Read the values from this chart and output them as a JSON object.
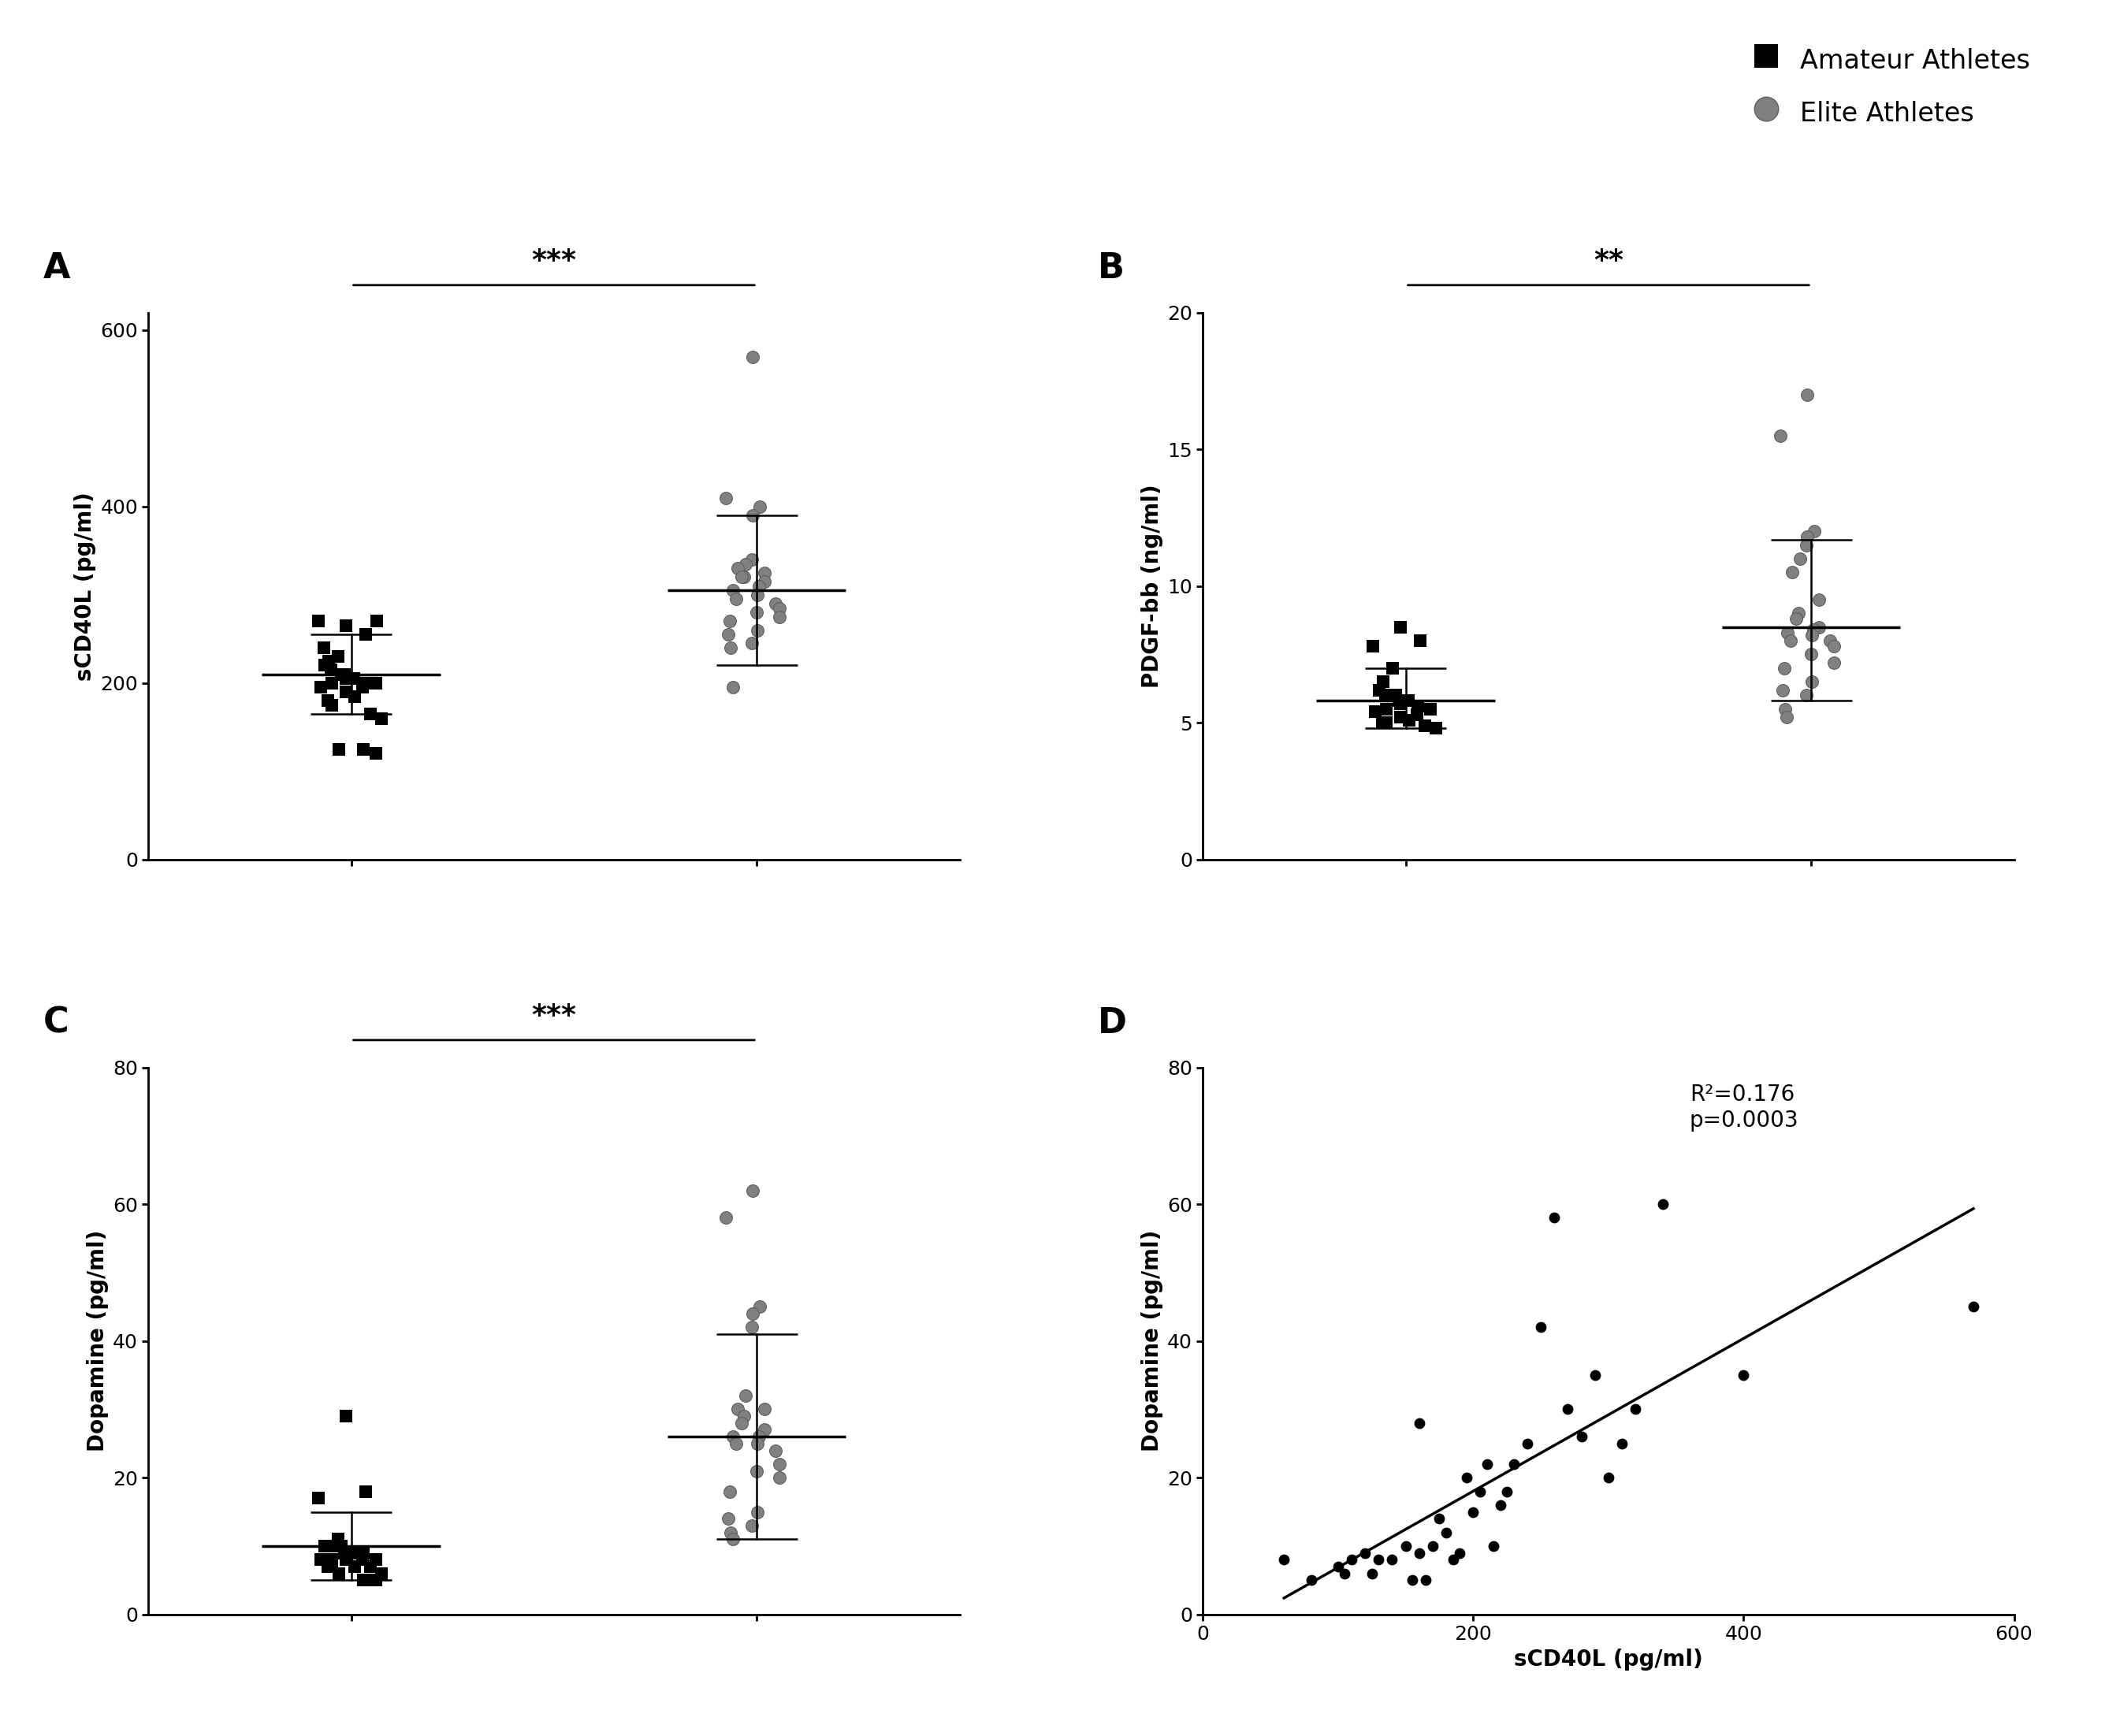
{
  "panel_A": {
    "amateur_x": 1,
    "elite_x": 2,
    "amateur_y": [
      265,
      255,
      270,
      230,
      225,
      220,
      215,
      210,
      210,
      205,
      205,
      200,
      200,
      200,
      195,
      195,
      190,
      185,
      180,
      175,
      165,
      160,
      125,
      125,
      120,
      270,
      240
    ],
    "elite_y": [
      570,
      410,
      400,
      390,
      340,
      335,
      330,
      325,
      320,
      320,
      315,
      310,
      305,
      300,
      295,
      290,
      285,
      280,
      275,
      270,
      260,
      255,
      245,
      240,
      195
    ],
    "amateur_mean": 210,
    "amateur_sd_upper": 255,
    "amateur_sd_lower": 165,
    "elite_mean": 305,
    "elite_sd_upper": 390,
    "elite_sd_lower": 220,
    "ylabel": "sCD40L (pg/ml)",
    "ylim": [
      0,
      620
    ],
    "yticks": [
      0,
      200,
      400,
      600
    ],
    "sig": "***",
    "panel_label": "A"
  },
  "panel_B": {
    "amateur_x": 1,
    "elite_x": 2,
    "amateur_y": [
      8.5,
      8.0,
      7.8,
      7.0,
      6.5,
      6.2,
      6.0,
      6.0,
      5.8,
      5.8,
      5.7,
      5.6,
      5.5,
      5.5,
      5.4,
      5.3,
      5.2,
      5.1,
      5.0,
      5.0,
      4.9,
      4.8
    ],
    "elite_y": [
      17.0,
      15.5,
      12.0,
      11.8,
      11.5,
      11.0,
      10.5,
      9.5,
      9.0,
      8.8,
      8.5,
      8.4,
      8.3,
      8.2,
      8.0,
      8.0,
      7.8,
      7.5,
      7.2,
      7.0,
      6.5,
      6.2,
      6.0,
      5.5,
      5.2
    ],
    "amateur_mean": 5.8,
    "amateur_sd_upper": 7.0,
    "amateur_sd_lower": 4.8,
    "elite_mean": 8.5,
    "elite_sd_upper": 11.7,
    "elite_sd_lower": 5.8,
    "ylabel": "PDGF-bb (ng/ml)",
    "ylim": [
      0,
      20
    ],
    "yticks": [
      0,
      5,
      10,
      15,
      20
    ],
    "sig": "**",
    "panel_label": "B"
  },
  "panel_C": {
    "amateur_x": 1,
    "elite_x": 2,
    "amateur_y": [
      29,
      18,
      17,
      11,
      10,
      10,
      10,
      10,
      9,
      9,
      9,
      9,
      8,
      8,
      8,
      8,
      8,
      7,
      7,
      7,
      7,
      6,
      6,
      5,
      5
    ],
    "elite_y": [
      62,
      58,
      45,
      44,
      42,
      32,
      30,
      30,
      29,
      28,
      27,
      26,
      26,
      25,
      25,
      24,
      22,
      21,
      20,
      18,
      15,
      14,
      13,
      12,
      11
    ],
    "amateur_mean": 10,
    "amateur_sd_upper": 15,
    "amateur_sd_lower": 5,
    "elite_mean": 26,
    "elite_sd_upper": 41,
    "elite_sd_lower": 11,
    "ylabel": "Dopamine (pg/ml)",
    "ylim": [
      0,
      80
    ],
    "yticks": [
      0,
      20,
      40,
      60,
      80
    ],
    "sig": "***",
    "panel_label": "C"
  },
  "panel_D": {
    "x": [
      60,
      80,
      100,
      105,
      110,
      120,
      125,
      130,
      140,
      150,
      155,
      160,
      160,
      165,
      170,
      175,
      180,
      185,
      190,
      195,
      200,
      205,
      210,
      215,
      220,
      225,
      230,
      240,
      250,
      260,
      270,
      280,
      290,
      300,
      310,
      320,
      340,
      400,
      570
    ],
    "y": [
      8,
      5,
      7,
      6,
      8,
      9,
      6,
      8,
      8,
      10,
      5,
      9,
      28,
      5,
      10,
      14,
      12,
      8,
      9,
      20,
      15,
      18,
      22,
      10,
      16,
      18,
      22,
      25,
      42,
      58,
      30,
      26,
      35,
      20,
      25,
      30,
      60,
      35,
      45
    ],
    "xlabel": "sCD40L (pg/ml)",
    "ylabel": "Dopamine (pg/ml)",
    "ylim": [
      0,
      80
    ],
    "xlim": [
      0,
      600
    ],
    "yticks": [
      0,
      20,
      40,
      60,
      80
    ],
    "xticks": [
      0,
      200,
      400,
      600
    ],
    "r2_text": "R²=0.176",
    "p_text": "p=0.0003",
    "panel_label": "D"
  },
  "amateur_color": "#000000",
  "elite_color": "#808080",
  "elite_edge_color": "#606060",
  "background_color": "#ffffff",
  "marker_size_sq": 120,
  "marker_size_circ": 130,
  "marker_size_d": 80,
  "line_width": 2.0,
  "legend_amateur_label": "Amateur Athletes",
  "legend_elite_label": "Elite Athletes"
}
